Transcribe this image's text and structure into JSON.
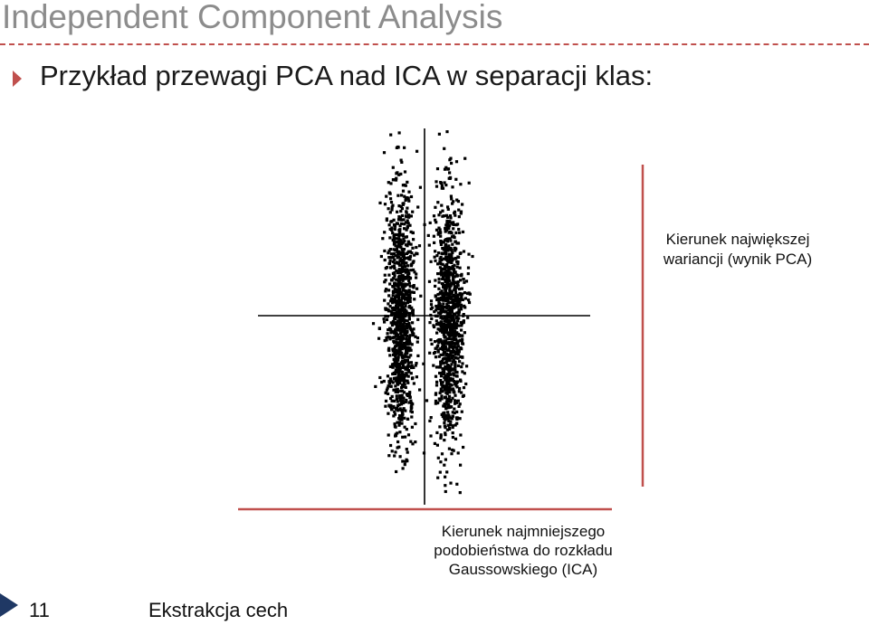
{
  "slide": {
    "title": "Independent Component Analysis",
    "bullet": "Przykład przewagi PCA nad ICA w separacji klas:"
  },
  "annotations": {
    "pca_label": [
      "Kierunek największej",
      "wariancji (wynik PCA)"
    ],
    "ica_label": [
      "Kierunek najmniejszego",
      "podobieństwa do rozkładu",
      "Gaussowskiego (ICA)"
    ]
  },
  "footer": {
    "page_number": "11",
    "section": "Ekstrakcja cech"
  },
  "colors": {
    "title": "#8c8c8c",
    "accent": "#c0504d",
    "pca_line": "#c0504d",
    "ica_line": "#c0504d",
    "points": "#000000",
    "footer_arrow": "#1f3864"
  }
}
